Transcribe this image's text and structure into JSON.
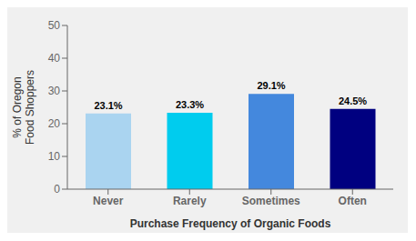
{
  "chart_data": {
    "type": "bar",
    "categories": [
      "Never",
      "Rarely",
      "Sometimes",
      "Often"
    ],
    "values": [
      23.1,
      23.3,
      29.1,
      24.5
    ],
    "value_labels": [
      "23.1%",
      "23.3%",
      "29.1%",
      "24.5%"
    ],
    "colors": [
      "#aad4f0",
      "#00ccee",
      "#4488dd",
      "#000080"
    ],
    "xlabel": "Purchase Frequency of Organic Foods",
    "ylabel": "% of Oregon\nFood Shoppers",
    "ylim": [
      0,
      50
    ],
    "yticks": [
      0,
      10,
      20,
      30,
      40,
      50
    ],
    "grid": false,
    "data_labels": true
  }
}
